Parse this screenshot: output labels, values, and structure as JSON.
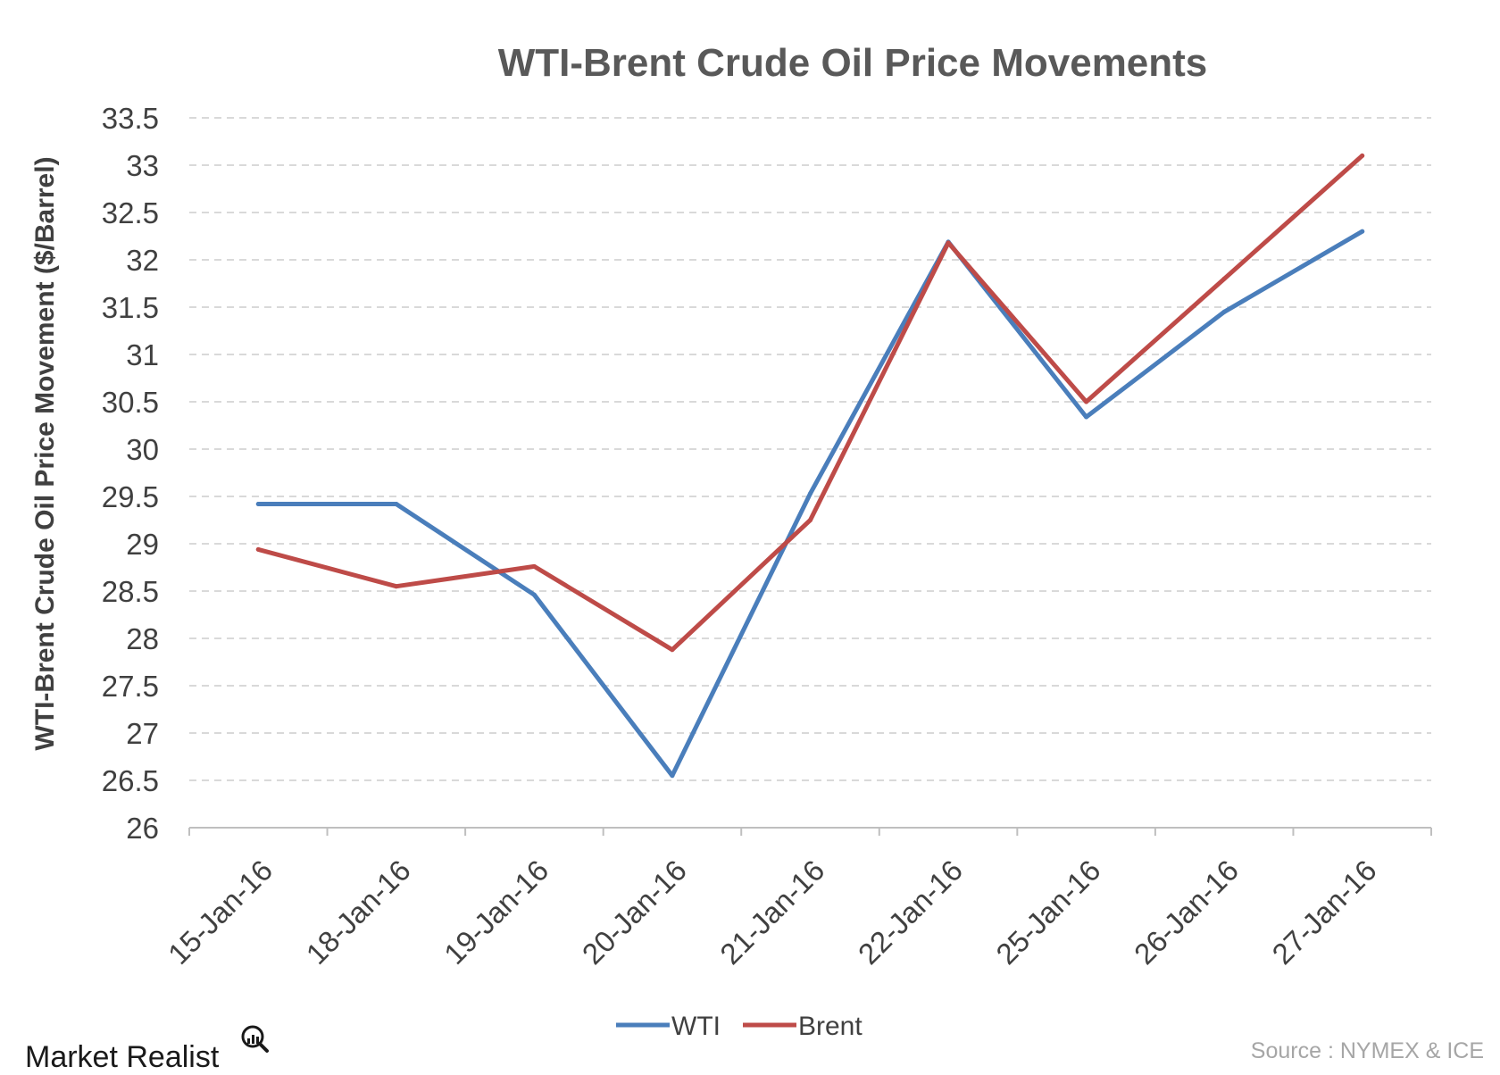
{
  "chart_data": {
    "type": "line",
    "title": "WTI-Brent Crude Oil Price Movements",
    "xlabel": "",
    "ylabel": "WTI-Brent Crude Oil Price Movement ($/Barrel)",
    "categories": [
      "15-Jan-16",
      "18-Jan-16",
      "19-Jan-16",
      "20-Jan-16",
      "21-Jan-16",
      "22-Jan-16",
      "25-Jan-16",
      "26-Jan-16",
      "27-Jan-16"
    ],
    "ylim": [
      26,
      33.5
    ],
    "yticks": [
      "26",
      "26.5",
      "27",
      "27.5",
      "28",
      "28.5",
      "29",
      "29.5",
      "30",
      "30.5",
      "31",
      "31.5",
      "32",
      "32.5",
      "33",
      "33.5"
    ],
    "grid": true,
    "legend_position": "bottom",
    "series": [
      {
        "name": "WTI",
        "color": "#4a7ebb",
        "values": [
          29.42,
          29.42,
          28.46,
          26.55,
          29.53,
          32.19,
          30.34,
          31.45,
          32.3
        ]
      },
      {
        "name": "Brent",
        "color": "#be4b48",
        "values": [
          28.94,
          28.55,
          28.76,
          27.88,
          29.25,
          32.18,
          30.5,
          31.8,
          33.1
        ]
      }
    ]
  },
  "branding": {
    "logo_text": "Market Realist",
    "source": "Source : NYMEX & ICE"
  }
}
